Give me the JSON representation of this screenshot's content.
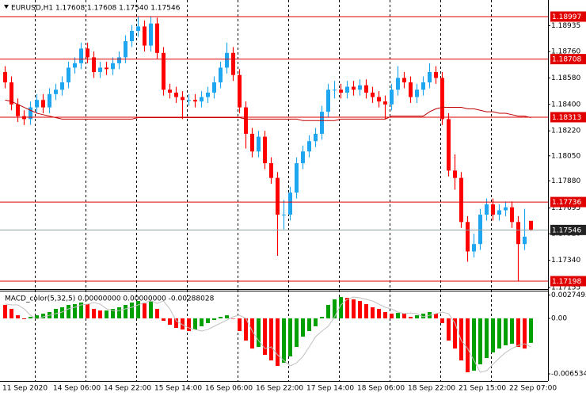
{
  "chart_data": [
    {
      "type": "candlestick",
      "title": "EURUSD,H1  1.17608 1.17608 1.17540 1.17546",
      "up_color": "#1ea7f0",
      "down_color": "#ff0000",
      "ma_color": "#c00000",
      "level_color": "#e00000",
      "bid_color": "#222222",
      "ylim": [
        1.17144,
        1.1911
      ],
      "yticks": [
        1.18935,
        {
          "value": 1.1876,
          "label": "1.18760"
        },
        {
          "value": 1.1858,
          "label": "1.18580"
        },
        {
          "value": 1.184,
          "label": "1.18400"
        },
        {
          "value": 1.1822,
          "label": "1.18220"
        },
        {
          "value": 1.1805,
          "label": "1.18050"
        },
        {
          "value": 1.1788,
          "label": "1.17880"
        },
        1.17695,
        {
          "value": 1.1752,
          "label": "1.17520"
        },
        {
          "value": 1.1734,
          "label": "1.17340"
        },
        1.17155
      ],
      "levels": [
        1.18997,
        1.18708,
        1.18313,
        1.17736,
        1.17198
      ],
      "x_labels": [
        "11 Sep 2020",
        "14 Sep 06:00",
        "14 Sep 22:00",
        "15 Sep 14:00",
        "16 Sep 06:00",
        "16 Sep 22:00",
        "17 Sep 14:00",
        "18 Sep 06:00",
        "18 Sep 22:00",
        "21 Sep 15:00",
        "22 Sep 07:00"
      ],
      "open": [
        1.1862,
        1.1855,
        1.184,
        1.1832,
        1.183,
        1.1838,
        1.1843,
        1.1838,
        1.1847,
        1.185,
        1.1855,
        1.1865,
        1.1868,
        1.1878,
        1.1872,
        1.1862,
        1.1865,
        1.1864,
        1.1868,
        1.1872,
        1.1883,
        1.189,
        1.1893,
        1.188,
        1.1895,
        1.1875,
        1.185,
        1.1848,
        1.1845,
        1.1843,
        1.1843,
        1.1842,
        1.1845,
        1.1848,
        1.1855,
        1.1865,
        1.1875,
        1.186,
        1.1838,
        1.182,
        1.1808,
        1.1818,
        1.18,
        1.179,
        1.1765,
        1.1765,
        1.178,
        1.18,
        1.1808,
        1.1815,
        1.182,
        1.1835,
        1.185,
        1.185,
        1.1848,
        1.1852,
        1.185,
        1.1853,
        1.1848,
        1.1845,
        1.1842,
        1.184,
        1.185,
        1.1858,
        1.1855,
        1.1845,
        1.185,
        1.1855,
        1.1862,
        1.1858,
        1.183,
        1.1795,
        1.179,
        1.176,
        1.174,
        1.1745,
        1.1765,
        1.1772,
        1.1765,
        1.1768,
        1.177,
        1.176,
        1.1745,
        1.17608
      ],
      "high": [
        1.1866,
        1.1859,
        1.1844,
        1.1836,
        1.1842,
        1.1847,
        1.1847,
        1.1851,
        1.1854,
        1.1859,
        1.1869,
        1.1872,
        1.1882,
        1.1882,
        1.1876,
        1.1869,
        1.1869,
        1.1872,
        1.1876,
        1.1887,
        1.1894,
        1.19,
        1.1897,
        1.19,
        1.1899,
        1.1879,
        1.1854,
        1.1852,
        1.1849,
        1.1847,
        1.1847,
        1.1849,
        1.1852,
        1.1859,
        1.1869,
        1.1882,
        1.1879,
        1.1864,
        1.1842,
        1.1824,
        1.1822,
        1.1822,
        1.1804,
        1.1794,
        1.1775,
        1.1784,
        1.1804,
        1.1812,
        1.1819,
        1.1824,
        1.1839,
        1.1854,
        1.1856,
        1.1854,
        1.1856,
        1.1856,
        1.1857,
        1.1857,
        1.1852,
        1.1849,
        1.1846,
        1.1854,
        1.1866,
        1.1862,
        1.1859,
        1.1854,
        1.1859,
        1.1868,
        1.1866,
        1.1862,
        1.1834,
        1.1806,
        1.1794,
        1.1764,
        1.1752,
        1.1769,
        1.1776,
        1.1776,
        1.1772,
        1.1774,
        1.1774,
        1.1764,
        1.1769,
        1.17608
      ],
      "low": [
        1.1851,
        1.1836,
        1.1828,
        1.1826,
        1.1826,
        1.1834,
        1.1834,
        1.1834,
        1.1843,
        1.1846,
        1.1851,
        1.1861,
        1.1864,
        1.1868,
        1.1858,
        1.1858,
        1.186,
        1.186,
        1.1864,
        1.1868,
        1.1879,
        1.1886,
        1.1876,
        1.1876,
        1.1871,
        1.1846,
        1.1844,
        1.1841,
        1.183,
        1.1839,
        1.1838,
        1.1838,
        1.1841,
        1.1844,
        1.1851,
        1.1861,
        1.1856,
        1.1834,
        1.181,
        1.1804,
        1.1804,
        1.1796,
        1.1786,
        1.1737,
        1.1755,
        1.1761,
        1.1776,
        1.1796,
        1.1804,
        1.1811,
        1.1816,
        1.1831,
        1.1844,
        1.1844,
        1.1844,
        1.1846,
        1.1846,
        1.1844,
        1.1841,
        1.1838,
        1.183,
        1.1836,
        1.1846,
        1.1851,
        1.1841,
        1.1841,
        1.1846,
        1.1851,
        1.1854,
        1.1826,
        1.1791,
        1.1782,
        1.1756,
        1.1733,
        1.1736,
        1.1741,
        1.1761,
        1.1761,
        1.1761,
        1.1764,
        1.1756,
        1.172,
        1.1741,
        1.1754
      ],
      "close": [
        1.1855,
        1.184,
        1.1832,
        1.183,
        1.1838,
        1.1843,
        1.1838,
        1.1847,
        1.185,
        1.1855,
        1.1865,
        1.1868,
        1.1878,
        1.1872,
        1.1862,
        1.1865,
        1.1864,
        1.1868,
        1.1872,
        1.1883,
        1.189,
        1.1893,
        1.188,
        1.1895,
        1.1875,
        1.185,
        1.1848,
        1.1845,
        1.1843,
        1.1843,
        1.1842,
        1.1845,
        1.1848,
        1.1855,
        1.1865,
        1.1875,
        1.186,
        1.1838,
        1.182,
        1.1808,
        1.1818,
        1.18,
        1.179,
        1.1765,
        1.1765,
        1.178,
        1.18,
        1.1808,
        1.1815,
        1.182,
        1.1835,
        1.185,
        1.185,
        1.1848,
        1.1852,
        1.185,
        1.1853,
        1.1848,
        1.1845,
        1.1842,
        1.184,
        1.185,
        1.1858,
        1.1855,
        1.1845,
        1.185,
        1.1855,
        1.1862,
        1.1858,
        1.183,
        1.1795,
        1.179,
        1.176,
        1.174,
        1.1745,
        1.1765,
        1.1772,
        1.1765,
        1.1768,
        1.177,
        1.176,
        1.1745,
        1.175,
        1.17546
      ],
      "ma": [
        1.1843,
        1.1842,
        1.184,
        1.1838,
        1.1836,
        1.1834,
        1.1833,
        1.1832,
        1.1831,
        1.183,
        1.183,
        1.183,
        1.183,
        1.183,
        1.183,
        1.183,
        1.183,
        1.183,
        1.183,
        1.183,
        1.183,
        1.1831,
        1.1831,
        1.1831,
        1.1831,
        1.1831,
        1.1831,
        1.1831,
        1.1831,
        1.1831,
        1.1831,
        1.1831,
        1.1831,
        1.1831,
        1.1831,
        1.1831,
        1.1831,
        1.1831,
        1.183,
        1.183,
        1.183,
        1.183,
        1.183,
        1.183,
        1.183,
        1.183,
        1.183,
        1.1829,
        1.1829,
        1.1829,
        1.1829,
        1.1829,
        1.1829,
        1.183,
        1.183,
        1.183,
        1.183,
        1.183,
        1.183,
        1.183,
        1.183,
        1.1832,
        1.1832,
        1.1832,
        1.1832,
        1.1832,
        1.1832,
        1.1835,
        1.1837,
        1.1838,
        1.1838,
        1.1838,
        1.1838,
        1.1837,
        1.1837,
        1.1836,
        1.1835,
        1.1835,
        1.1834,
        1.1834,
        1.1833,
        1.1832,
        1.1832,
        1.1831
      ]
    },
    {
      "type": "bar",
      "title": "MACD_color(5,32,5) 0.00000000 0.00000000 -0.00288028",
      "up_color": "#00a000",
      "down_color": "#ff0000",
      "signal_color": "#c0c0c0",
      "ylim": [
        -0.00737,
        0.00327
      ],
      "yticks": [
        0.0027495,
        {
          "value": 0,
          "label": "0.00"
        },
        -0.0065345
      ],
      "values": [
        0.00159,
        0.00112,
        0.00037,
        -9e-05,
        0.00019,
        0.00037,
        0.00056,
        0.00075,
        0.00112,
        0.00131,
        0.00159,
        0.00168,
        0.00187,
        0.00168,
        0.00112,
        0.00093,
        0.00093,
        0.00112,
        0.00131,
        0.00159,
        0.00187,
        0.00205,
        0.00177,
        0.00205,
        0.00112,
        -0.00028,
        -0.00075,
        -0.00112,
        -0.00131,
        -0.00149,
        -0.00131,
        -0.00093,
        -0.00056,
        -0.00019,
        0.00019,
        0.00037,
        0,
        -0.00149,
        -0.00261,
        -0.00355,
        -0.00336,
        -0.00429,
        -0.00495,
        -0.0056,
        -0.00523,
        -0.00448,
        -0.00336,
        -0.00215,
        -0.00149,
        -0.00093,
        0.00019,
        0.00159,
        0.00224,
        0.00252,
        0.00243,
        0.00224,
        0.00205,
        0.00168,
        0.00131,
        0.00112,
        0.00075,
        0.00056,
        0.00065,
        0.00056,
        0.00019,
        0.00037,
        0.00056,
        0.00075,
        0.00056,
        -0.00056,
        -0.00261,
        -0.00355,
        -0.00495,
        -0.00635,
        -0.00616,
        -0.00541,
        -0.00467,
        -0.00401,
        -0.00355,
        -0.00317,
        -0.00299,
        -0.00336,
        -0.00355,
        -0.00288028
      ],
      "signal": [
        0.0017,
        0.0016,
        0.00159,
        0.00112,
        0.00037,
        -9e-05,
        0.00019,
        0.00037,
        0.00056,
        0.00075,
        0.00112,
        0.00131,
        0.00159,
        0.00168,
        0.00187,
        0.00168,
        0.00112,
        0.00093,
        0.00093,
        0.00112,
        0.00131,
        0.00159,
        0.00187,
        0.00205,
        0.00177,
        0.00205,
        0.00112,
        -0.00028,
        -0.00075,
        -0.00112,
        -0.00131,
        -0.00149,
        -0.00131,
        -0.00093,
        -0.00056,
        -0.00019,
        0.00019,
        0.00037,
        0,
        -0.00149,
        -0.00261,
        -0.00355,
        -0.00336,
        -0.00429,
        -0.00495,
        -0.0056,
        -0.00523,
        -0.00448,
        -0.00336,
        -0.00215,
        -0.00149,
        -0.00093,
        0.00019,
        0.00159,
        0.00224,
        0.00252,
        0.00243,
        0.00224,
        0.00205,
        0.00168,
        0.00131,
        0.00112,
        0.00075,
        0.00056,
        0.00065,
        0.00056,
        0.00019,
        0.00037,
        0.00056,
        0.00075,
        0.00056,
        -0.00056,
        -0.00261,
        -0.00355,
        -0.00495,
        -0.00635,
        -0.00616,
        -0.00541,
        -0.00467,
        -0.00401,
        -0.00355,
        -0.00317,
        -0.00299,
        -0.00336
      ]
    }
  ]
}
